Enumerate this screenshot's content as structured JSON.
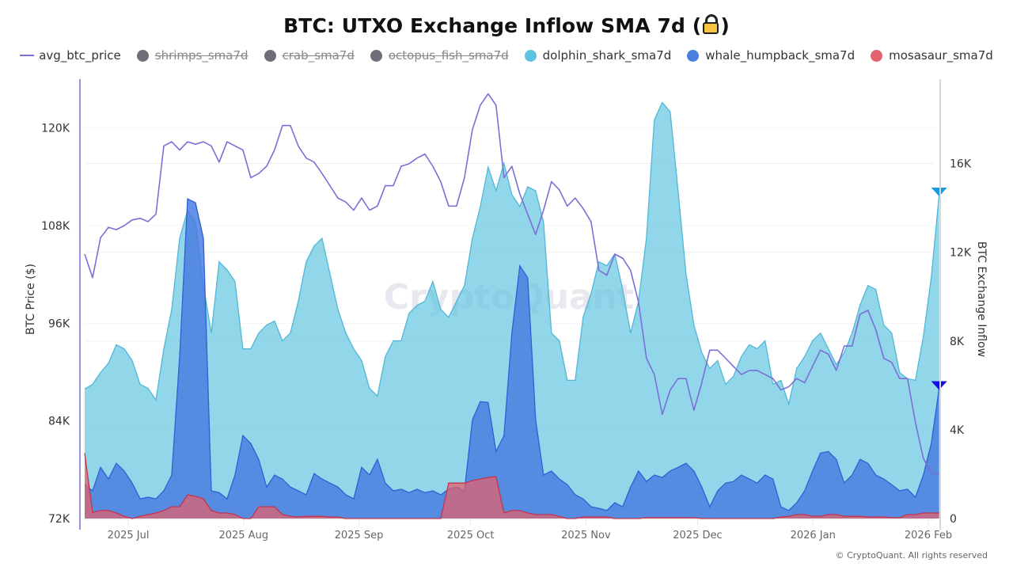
{
  "chart_data": {
    "type": "area",
    "title": "BTC: UTXO Exchange Inflow SMA 7d (",
    "title_suffix": ")",
    "title_icon": "lock-icon",
    "x_unit": "days since 2025-07-01",
    "x_ticks": [
      {
        "label": "2025 Jul",
        "day": 0
      },
      {
        "label": "2025 Aug",
        "day": 31
      },
      {
        "label": "2025 Sep",
        "day": 62
      },
      {
        "label": "2025 Oct",
        "day": 92
      },
      {
        "label": "2025 Nov",
        "day": 123
      },
      {
        "label": "2025 Dec",
        "day": 153
      },
      {
        "label": "2026 Jan",
        "day": 184
      },
      {
        "label": "2026 Feb",
        "day": 215
      }
    ],
    "xlim": [
      -11.7,
      216.7
    ],
    "left_axis": {
      "title": "BTC Price ($)",
      "ylim": [
        72000,
        126000
      ],
      "ticks": [
        {
          "label": "72K",
          "value": 72000
        },
        {
          "label": "84K",
          "value": 84000
        },
        {
          "label": "96K",
          "value": 96000
        },
        {
          "label": "108K",
          "value": 108000
        },
        {
          "label": "120K",
          "value": 120000
        }
      ]
    },
    "right_axis": {
      "title": "BTC Exchange Inflow",
      "ylim": [
        0,
        19800
      ],
      "ticks": [
        {
          "label": "0",
          "value": 0
        },
        {
          "label": "4K",
          "value": 4000
        },
        {
          "label": "8K",
          "value": 8000
        },
        {
          "label": "12K",
          "value": 12000
        },
        {
          "label": "16K",
          "value": 16000
        }
      ]
    },
    "x_start": -11.7,
    "x_step": 2.126,
    "series": [
      {
        "name": "avg_btc_price",
        "type": "line",
        "axis": "left",
        "visible": true,
        "color": "#7b6fd6",
        "values": [
          104.5,
          101.6,
          106.5,
          107.8,
          107.5,
          108.0,
          108.7,
          108.9,
          108.5,
          109.4,
          117.8,
          118.3,
          117.3,
          118.3,
          118.0,
          118.3,
          117.8,
          115.8,
          118.3,
          117.8,
          117.3,
          113.9,
          114.4,
          115.3,
          117.3,
          120.3,
          120.3,
          117.8,
          116.3,
          115.8,
          114.4,
          112.9,
          111.4,
          110.9,
          109.9,
          111.4,
          109.9,
          110.4,
          112.9,
          112.9,
          115.3,
          115.6,
          116.3,
          116.8,
          115.3,
          113.4,
          110.4,
          110.4,
          113.9,
          119.8,
          122.8,
          124.2,
          122.8,
          113.9,
          115.3,
          111.9,
          109.4,
          106.9,
          109.9,
          113.4,
          112.4,
          110.4,
          111.4,
          110.1,
          108.5,
          102.5,
          101.9,
          104.5,
          104.0,
          102.5,
          98.6,
          91.7,
          89.7,
          84.8,
          87.8,
          89.2,
          89.2,
          85.3,
          88.7,
          92.7,
          92.7,
          91.7,
          90.7,
          89.7,
          90.2,
          90.2,
          89.7,
          89.2,
          87.8,
          88.2,
          89.2,
          88.7,
          90.7,
          92.7,
          92.2,
          90.2,
          93.2,
          93.2,
          97.1,
          97.6,
          95.2,
          91.7,
          91.2,
          89.2,
          89.2,
          83.8,
          79.4,
          77.6,
          77.4
        ],
        "value_scale": 1000
      },
      {
        "name": "shrimps_sma7d",
        "type": "area",
        "axis": "right",
        "visible": false,
        "color": "#6e6e78",
        "values": []
      },
      {
        "name": "crab_sma7d",
        "type": "area",
        "axis": "right",
        "visible": false,
        "color": "#6e6e78",
        "values": []
      },
      {
        "name": "octopus_fish_sma7d",
        "type": "area",
        "axis": "right",
        "visible": false,
        "color": "#6e6e78",
        "values": []
      },
      {
        "name": "dolphin_shark_sma7d",
        "type": "area",
        "axis": "right",
        "visible": true,
        "color": "#5fc3df",
        "values": [
          5.84,
          6.05,
          6.58,
          7.0,
          7.83,
          7.65,
          7.12,
          6.05,
          5.87,
          5.34,
          7.65,
          9.43,
          12.63,
          13.88,
          13.35,
          10.5,
          8.36,
          11.57,
          11.21,
          10.68,
          7.65,
          7.65,
          8.36,
          8.72,
          8.9,
          8.01,
          8.36,
          9.79,
          11.57,
          12.28,
          12.63,
          11.03,
          9.43,
          8.36,
          7.65,
          7.12,
          5.87,
          5.52,
          7.3,
          8.01,
          8.01,
          9.25,
          9.61,
          9.79,
          10.68,
          9.43,
          9.07,
          9.79,
          10.5,
          12.63,
          14.06,
          15.84,
          14.77,
          16.01,
          14.59,
          14.06,
          14.95,
          14.77,
          13.35,
          8.36,
          8.01,
          6.23,
          6.23,
          9.07,
          10.14,
          11.57,
          11.39,
          11.92,
          10.32,
          8.36,
          9.79,
          12.63,
          17.97,
          18.75,
          18.33,
          14.77,
          11.03,
          8.72,
          7.47,
          6.76,
          7.12,
          6.05,
          6.41,
          7.3,
          7.83,
          7.65,
          8.01,
          6.05,
          6.23,
          5.16,
          6.76,
          7.3,
          8.01,
          8.36,
          7.65,
          6.94,
          7.47,
          8.36,
          9.61,
          10.5,
          10.32,
          8.72,
          8.36,
          6.58,
          6.3,
          6.23,
          8.19,
          10.85,
          14.59
        ],
        "value_scale": 1000,
        "last_marker": true
      },
      {
        "name": "whale_humpback_sma7d",
        "type": "area",
        "axis": "right",
        "visible": true,
        "color": "#4a7fe0",
        "values": [
          1.53,
          1.25,
          2.31,
          1.78,
          2.49,
          2.14,
          1.6,
          0.89,
          0.96,
          0.89,
          1.25,
          1.96,
          7.3,
          14.41,
          14.23,
          12.63,
          1.25,
          1.17,
          0.89,
          1.96,
          3.74,
          3.38,
          2.67,
          1.42,
          1.96,
          1.78,
          1.42,
          1.25,
          1.07,
          2.03,
          1.78,
          1.6,
          1.42,
          1.07,
          0.89,
          2.31,
          1.96,
          2.67,
          1.6,
          1.25,
          1.32,
          1.17,
          1.32,
          1.17,
          1.25,
          1.07,
          1.32,
          1.42,
          1.25,
          4.45,
          5.27,
          5.23,
          3.02,
          3.74,
          8.36,
          11.39,
          10.85,
          4.45,
          1.96,
          2.14,
          1.78,
          1.53,
          1.07,
          0.89,
          0.53,
          0.46,
          0.36,
          0.71,
          0.53,
          1.42,
          2.14,
          1.67,
          1.96,
          1.85,
          2.14,
          2.31,
          2.49,
          2.14,
          1.42,
          0.53,
          1.25,
          1.6,
          1.67,
          1.96,
          1.78,
          1.6,
          1.96,
          1.78,
          0.53,
          0.36,
          0.71,
          1.25,
          2.14,
          2.95,
          3.02,
          2.67,
          1.6,
          1.96,
          2.67,
          2.49,
          1.96,
          1.78,
          1.53,
          1.25,
          1.32,
          0.96,
          1.96,
          3.38,
          5.87
        ],
        "value_scale": 1000,
        "last_marker": true
      },
      {
        "name": "mosasaur_sma7d",
        "type": "area",
        "axis": "right",
        "visible": true,
        "color": "#e0636e",
        "values": [
          2.95,
          0.28,
          0.36,
          0.36,
          0.25,
          0.1,
          0,
          0.1,
          0.18,
          0.25,
          0.36,
          0.53,
          0.53,
          1.07,
          1.0,
          0.89,
          0.36,
          0.25,
          0.25,
          0.18,
          0,
          0,
          0.53,
          0.53,
          0.53,
          0.18,
          0.1,
          0.07,
          0.1,
          0.1,
          0.1,
          0.07,
          0.07,
          0,
          0,
          0,
          0,
          0,
          0,
          0,
          0,
          0,
          0,
          0,
          0,
          0,
          1.6,
          1.6,
          1.6,
          1.71,
          1.78,
          1.85,
          1.89,
          0.25,
          0.36,
          0.36,
          0.25,
          0.18,
          0.18,
          0.18,
          0.1,
          0,
          0,
          0.07,
          0.07,
          0.07,
          0.07,
          0,
          0,
          0,
          0,
          0.04,
          0.04,
          0.04,
          0.04,
          0.04,
          0.04,
          0.04,
          0,
          0,
          0,
          0,
          0,
          0,
          0,
          0,
          0,
          0,
          0.07,
          0.1,
          0.18,
          0.18,
          0.1,
          0.1,
          0.18,
          0.18,
          0.1,
          0.1,
          0.1,
          0.07,
          0.07,
          0.07,
          0.04,
          0.04,
          0.18,
          0.18,
          0.25,
          0.25,
          0.25
        ],
        "value_scale": 1000
      }
    ]
  },
  "legend": [
    {
      "label": "avg_btc_price",
      "kind": "line",
      "color": "#7b6fd6",
      "enabled": true
    },
    {
      "label": "shrimps_sma7d",
      "kind": "dot",
      "color": "#6e6e78",
      "enabled": false
    },
    {
      "label": "crab_sma7d",
      "kind": "dot",
      "color": "#6e6e78",
      "enabled": false
    },
    {
      "label": "octopus_fish_sma7d",
      "kind": "dot",
      "color": "#6e6e78",
      "enabled": false
    },
    {
      "label": "dolphin_shark_sma7d",
      "kind": "dot",
      "color": "#5fc3df",
      "enabled": true
    },
    {
      "label": "whale_humpback_sma7d",
      "kind": "dot",
      "color": "#4a7fe0",
      "enabled": true
    },
    {
      "label": "mosasaur_sma7d",
      "kind": "dot",
      "color": "#e0636e",
      "enabled": true
    }
  ],
  "watermark": "CryptoQuant",
  "copyright": "© CryptoQuant. All rights reserved",
  "colors": {
    "dolphin_marker": "#1a9be0",
    "whale_marker": "#1010e0",
    "left_axis_line": "#9b8fe0",
    "right_axis_line": "#d8d8d8",
    "grid": "#efefef"
  }
}
